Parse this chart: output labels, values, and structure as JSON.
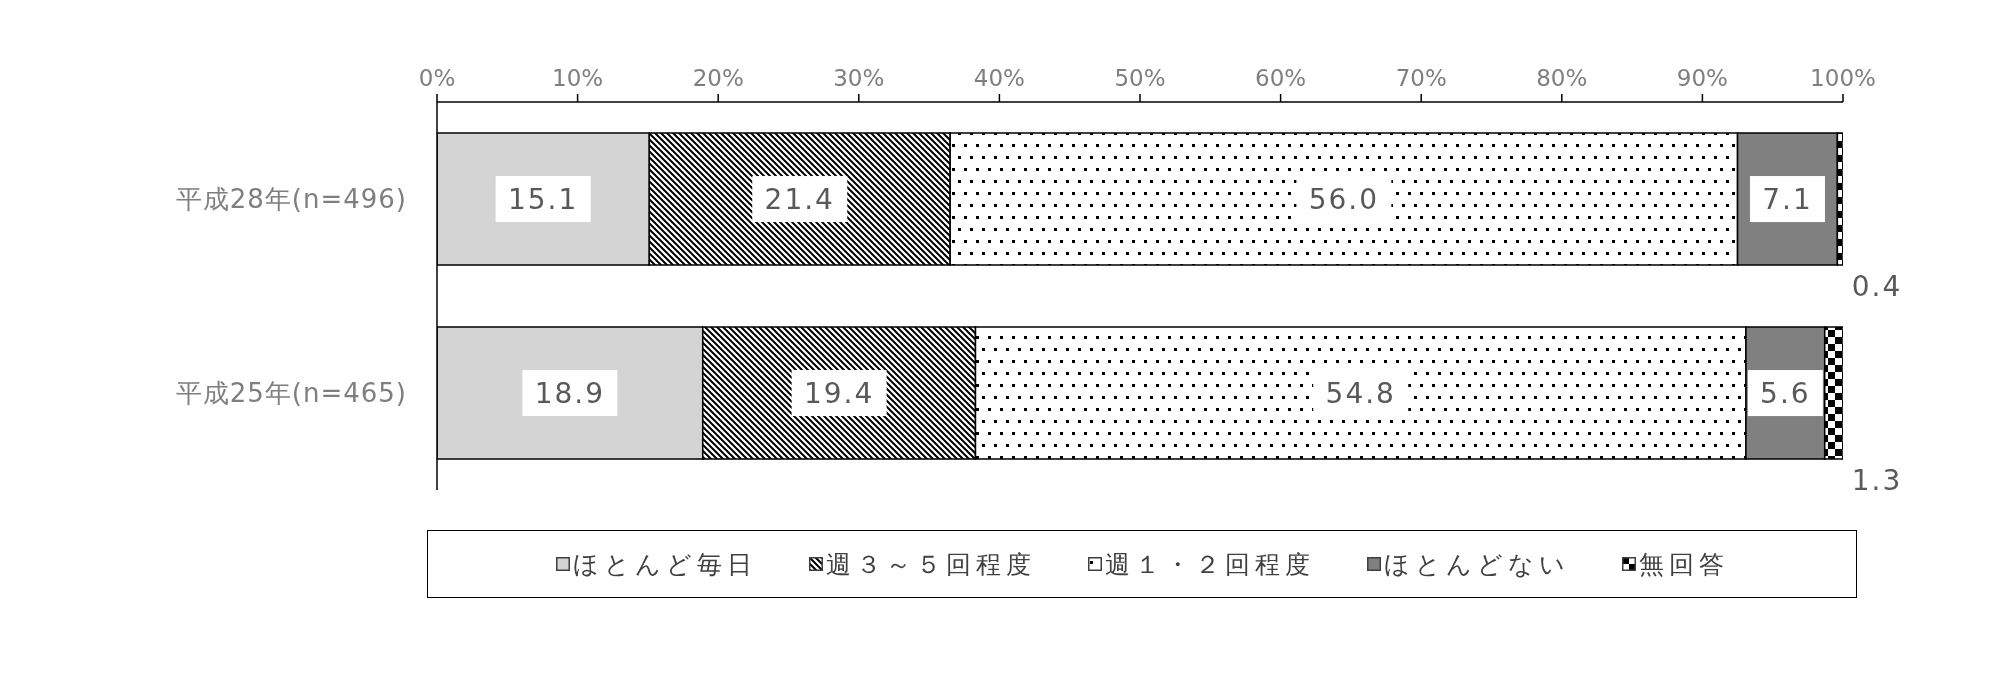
{
  "chart_data": {
    "type": "bar",
    "orientation": "horizontal",
    "stacked": true,
    "categories": [
      "平成28年(n=496)",
      "平成25年(n=465)"
    ],
    "series": [
      {
        "name": "ほとんど毎日",
        "color": "#d4d4d4",
        "values": [
          15.1,
          18.9
        ],
        "value_labels": [
          "15.1",
          "18.9"
        ]
      },
      {
        "name": "週３～５回程度",
        "color": "#000000",
        "values": [
          21.4,
          19.4
        ],
        "value_labels": [
          "21.4",
          "19.4"
        ]
      },
      {
        "name": "週１・２回程度",
        "color": "#000000",
        "values": [
          56.0,
          54.8
        ],
        "value_labels": [
          "56.0",
          "54.8"
        ]
      },
      {
        "name": "ほとんどない",
        "color": "#808080",
        "values": [
          7.1,
          5.6
        ],
        "value_labels": [
          "7.1",
          "5.6"
        ]
      },
      {
        "name": "無回答",
        "color": "#000000",
        "values": [
          0.4,
          1.3
        ],
        "value_labels": [
          "0.4",
          "1.3"
        ]
      }
    ],
    "xlim": [
      0,
      100
    ],
    "xticks": [
      {
        "value": 0,
        "label": "0%"
      },
      {
        "value": 10,
        "label": "10%"
      },
      {
        "value": 20,
        "label": "20%"
      },
      {
        "value": 30,
        "label": "30%"
      },
      {
        "value": 40,
        "label": "40%"
      },
      {
        "value": 50,
        "label": "50%"
      },
      {
        "value": 60,
        "label": "60%"
      },
      {
        "value": 70,
        "label": "70%"
      },
      {
        "value": 80,
        "label": "80%"
      },
      {
        "value": 90,
        "label": "90%"
      },
      {
        "value": 100,
        "label": "100%"
      }
    ],
    "legend": "bottom"
  }
}
